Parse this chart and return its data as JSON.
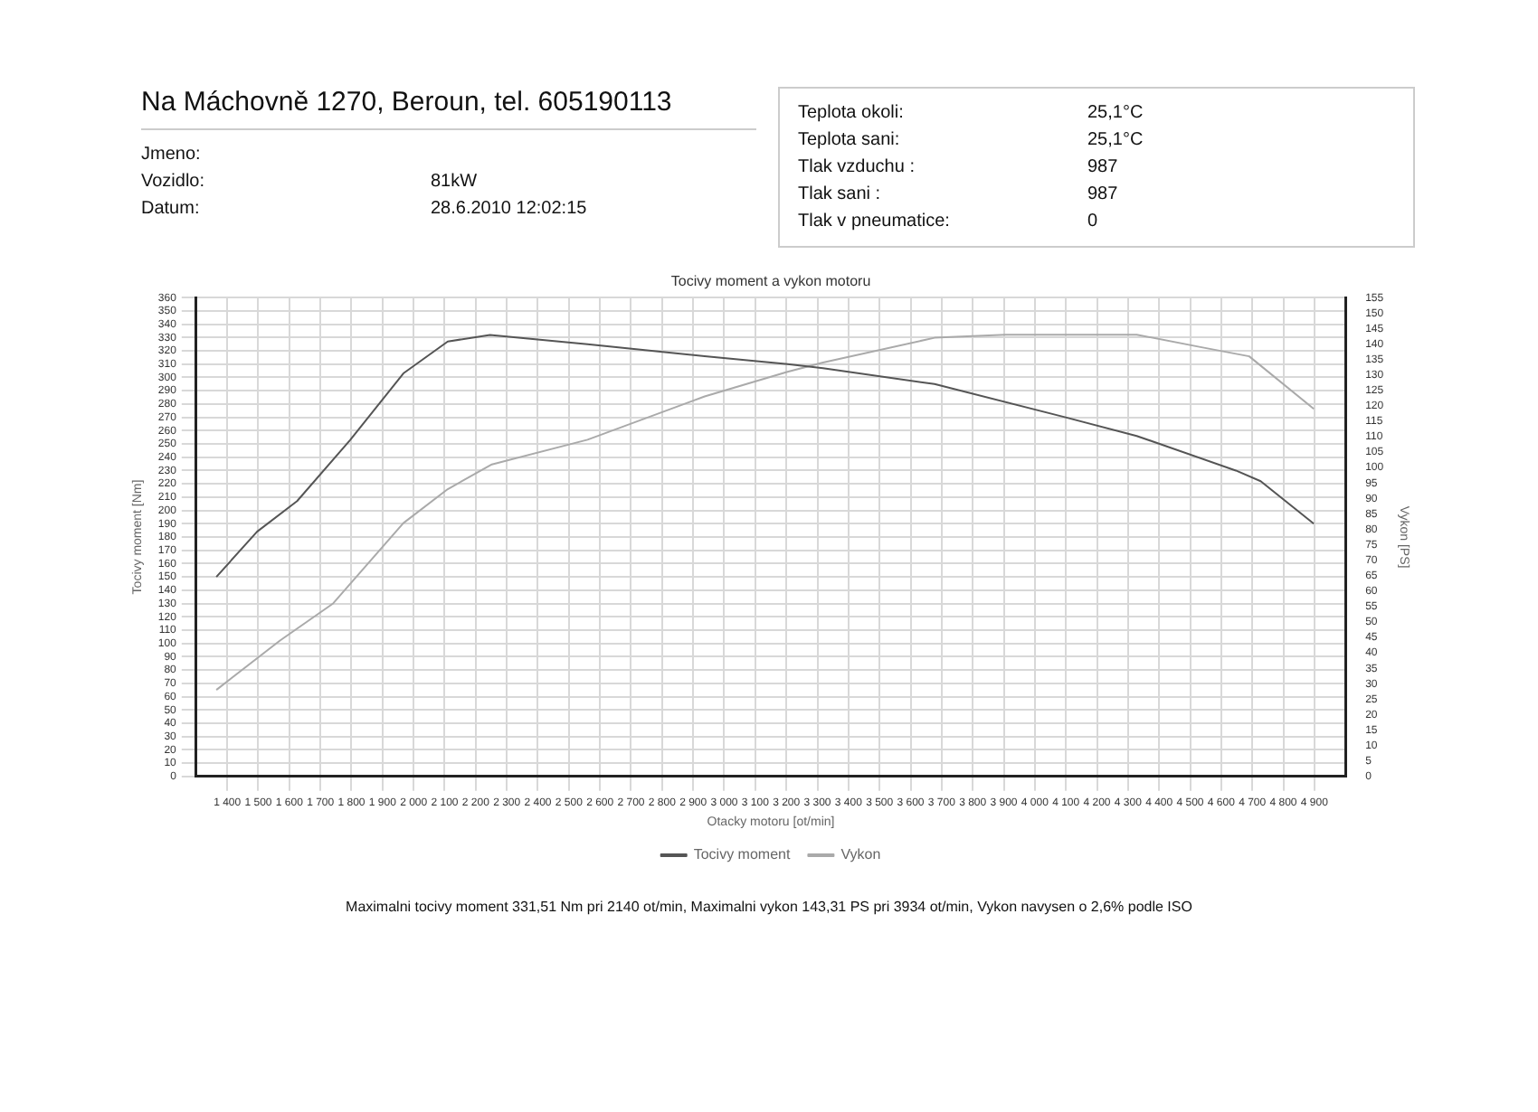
{
  "chart_data": {
    "type": "line",
    "title": "Tocivy moment a vykon motoru",
    "xlabel": "Otacky motoru [ot/min]",
    "ylabel": "Tocivy moment [Nm]",
    "y2label": "Vykon [PS]",
    "annotations": [
      "Na Máchovně 1270, Beroun, tel. 605190113",
      "Jmeno:",
      "Vozidlo: 81kW",
      "Datum: 28.6.2010 12:02:15",
      "Teplota okoli: 25,1°C",
      "Teplota sani: 25,1°C",
      "Tlak vzduchu : 987",
      "Tlak sani : 987",
      "Tlak v pneumatice: 0",
      "Maximalni tocivy moment 331,51 Nm pri 2140 ot/min,  Maximalni vykon 143,31 PS pri 3934 ot/min,  Vykon navysen o 2,6% podle ISO"
    ],
    "series": [
      {
        "name": "Tocivy moment",
        "color": "#555555",
        "x": [
          1365,
          1496,
          1625,
          1796,
          1967,
          2110,
          2246,
          2560,
          2937,
          3204,
          3318,
          3677,
          4099,
          4328,
          4647,
          4727,
          4898
        ],
        "values": [
          150,
          184,
          207,
          253,
          303,
          327,
          332,
          325,
          316,
          310,
          307,
          295,
          270,
          256,
          230,
          222,
          190
        ]
      },
      {
        "name": "Vykon",
        "color": "#aaaaaa",
        "axis": "y2",
        "x": [
          1365,
          1570,
          1741,
          1967,
          2110,
          2252,
          2560,
          2937,
          3204,
          3318,
          3677,
          3905,
          4328,
          4533,
          4690,
          4898
        ],
        "values": [
          28,
          44,
          56,
          82,
          93,
          101,
          109,
          123,
          131,
          134,
          142,
          143,
          143,
          139,
          136,
          119
        ]
      }
    ],
    "xlim": [
      1300,
      5000
    ],
    "xticks": [
      {
        "value": 1400,
        "label": "1 400"
      },
      {
        "value": 1500,
        "label": "1 500"
      },
      {
        "value": 1600,
        "label": "1 600"
      },
      {
        "value": 1700,
        "label": "1 700"
      },
      {
        "value": 1800,
        "label": "1 800"
      },
      {
        "value": 1900,
        "label": "1 900"
      },
      {
        "value": 2000,
        "label": "2 000"
      },
      {
        "value": 2100,
        "label": "2 100"
      },
      {
        "value": 2200,
        "label": "2 200"
      },
      {
        "value": 2300,
        "label": "2 300"
      },
      {
        "value": 2400,
        "label": "2 400"
      },
      {
        "value": 2500,
        "label": "2 500"
      },
      {
        "value": 2600,
        "label": "2 600"
      },
      {
        "value": 2700,
        "label": "2 700"
      },
      {
        "value": 2800,
        "label": "2 800"
      },
      {
        "value": 2900,
        "label": "2 900"
      },
      {
        "value": 3000,
        "label": "3 000"
      },
      {
        "value": 3100,
        "label": "3 100"
      },
      {
        "value": 3200,
        "label": "3 200"
      },
      {
        "value": 3300,
        "label": "3 300"
      },
      {
        "value": 3400,
        "label": "3 400"
      },
      {
        "value": 3500,
        "label": "3 500"
      },
      {
        "value": 3600,
        "label": "3 600"
      },
      {
        "value": 3700,
        "label": "3 700"
      },
      {
        "value": 3800,
        "label": "3 800"
      },
      {
        "value": 3900,
        "label": "3 900"
      },
      {
        "value": 4000,
        "label": "4 000"
      },
      {
        "value": 4100,
        "label": "4 100"
      },
      {
        "value": 4200,
        "label": "4 200"
      },
      {
        "value": 4300,
        "label": "4 300"
      },
      {
        "value": 4400,
        "label": "4 400"
      },
      {
        "value": 4500,
        "label": "4 500"
      },
      {
        "value": 4600,
        "label": "4 600"
      },
      {
        "value": 4700,
        "label": "4 700"
      },
      {
        "value": 4800,
        "label": "4 800"
      },
      {
        "value": 4900,
        "label": "4 900"
      }
    ],
    "ylim": [
      0,
      360
    ],
    "yticks": [
      0,
      10,
      20,
      30,
      40,
      50,
      60,
      70,
      80,
      90,
      100,
      110,
      120,
      130,
      140,
      150,
      160,
      170,
      180,
      190,
      200,
      210,
      220,
      230,
      240,
      250,
      260,
      270,
      280,
      290,
      300,
      310,
      320,
      330,
      340,
      350,
      360
    ],
    "y2lim": [
      0,
      155
    ],
    "y2ticks": [
      0,
      5,
      10,
      15,
      20,
      25,
      30,
      35,
      40,
      45,
      50,
      55,
      60,
      65,
      70,
      75,
      80,
      85,
      90,
      95,
      100,
      105,
      110,
      115,
      120,
      125,
      130,
      135,
      140,
      145,
      150,
      155
    ],
    "grid": true,
    "legend": "bottom",
    "marker": "none",
    "line_style": "solid"
  }
}
